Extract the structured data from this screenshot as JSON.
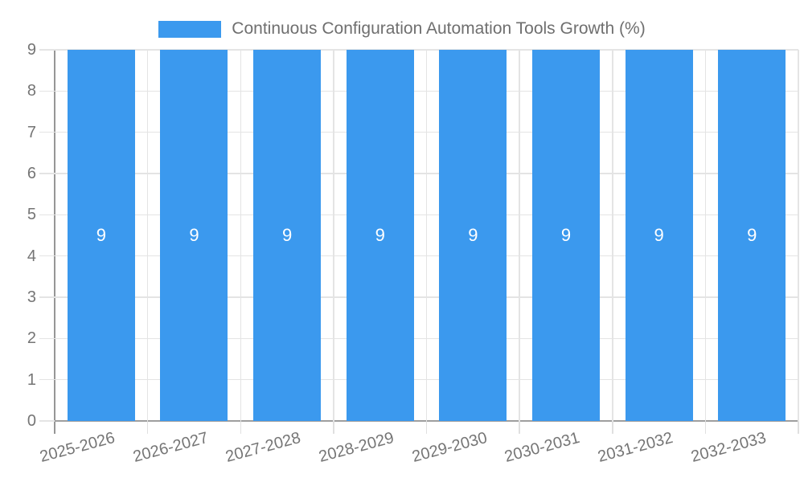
{
  "chart_data": {
    "type": "bar",
    "title": "Continuous Configuration Automation Tools Growth (%)",
    "categories": [
      "2025-2026",
      "2026-2027",
      "2027-2028",
      "2028-2029",
      "2029-2030",
      "2030-2031",
      "2031-2032",
      "2032-2033"
    ],
    "values": [
      9,
      9,
      9,
      9,
      9,
      9,
      9,
      9
    ],
    "value_labels": [
      "9",
      "9",
      "9",
      "9",
      "9",
      "9",
      "9",
      "9"
    ],
    "xlabel": "",
    "ylabel": "",
    "ylim": [
      0,
      9
    ],
    "yticks": [
      "0",
      "1",
      "2",
      "3",
      "4",
      "5",
      "6",
      "7",
      "8",
      "9"
    ],
    "grid": true,
    "legend_position": "top-center",
    "colors": {
      "bar": "#3b99ee",
      "grid": "#e4e4e4",
      "axis": "#9a9a9a",
      "tick_label": "#757575",
      "title": "#6f6f6f",
      "value_label": "#ffffff",
      "background": "#ffffff"
    }
  }
}
